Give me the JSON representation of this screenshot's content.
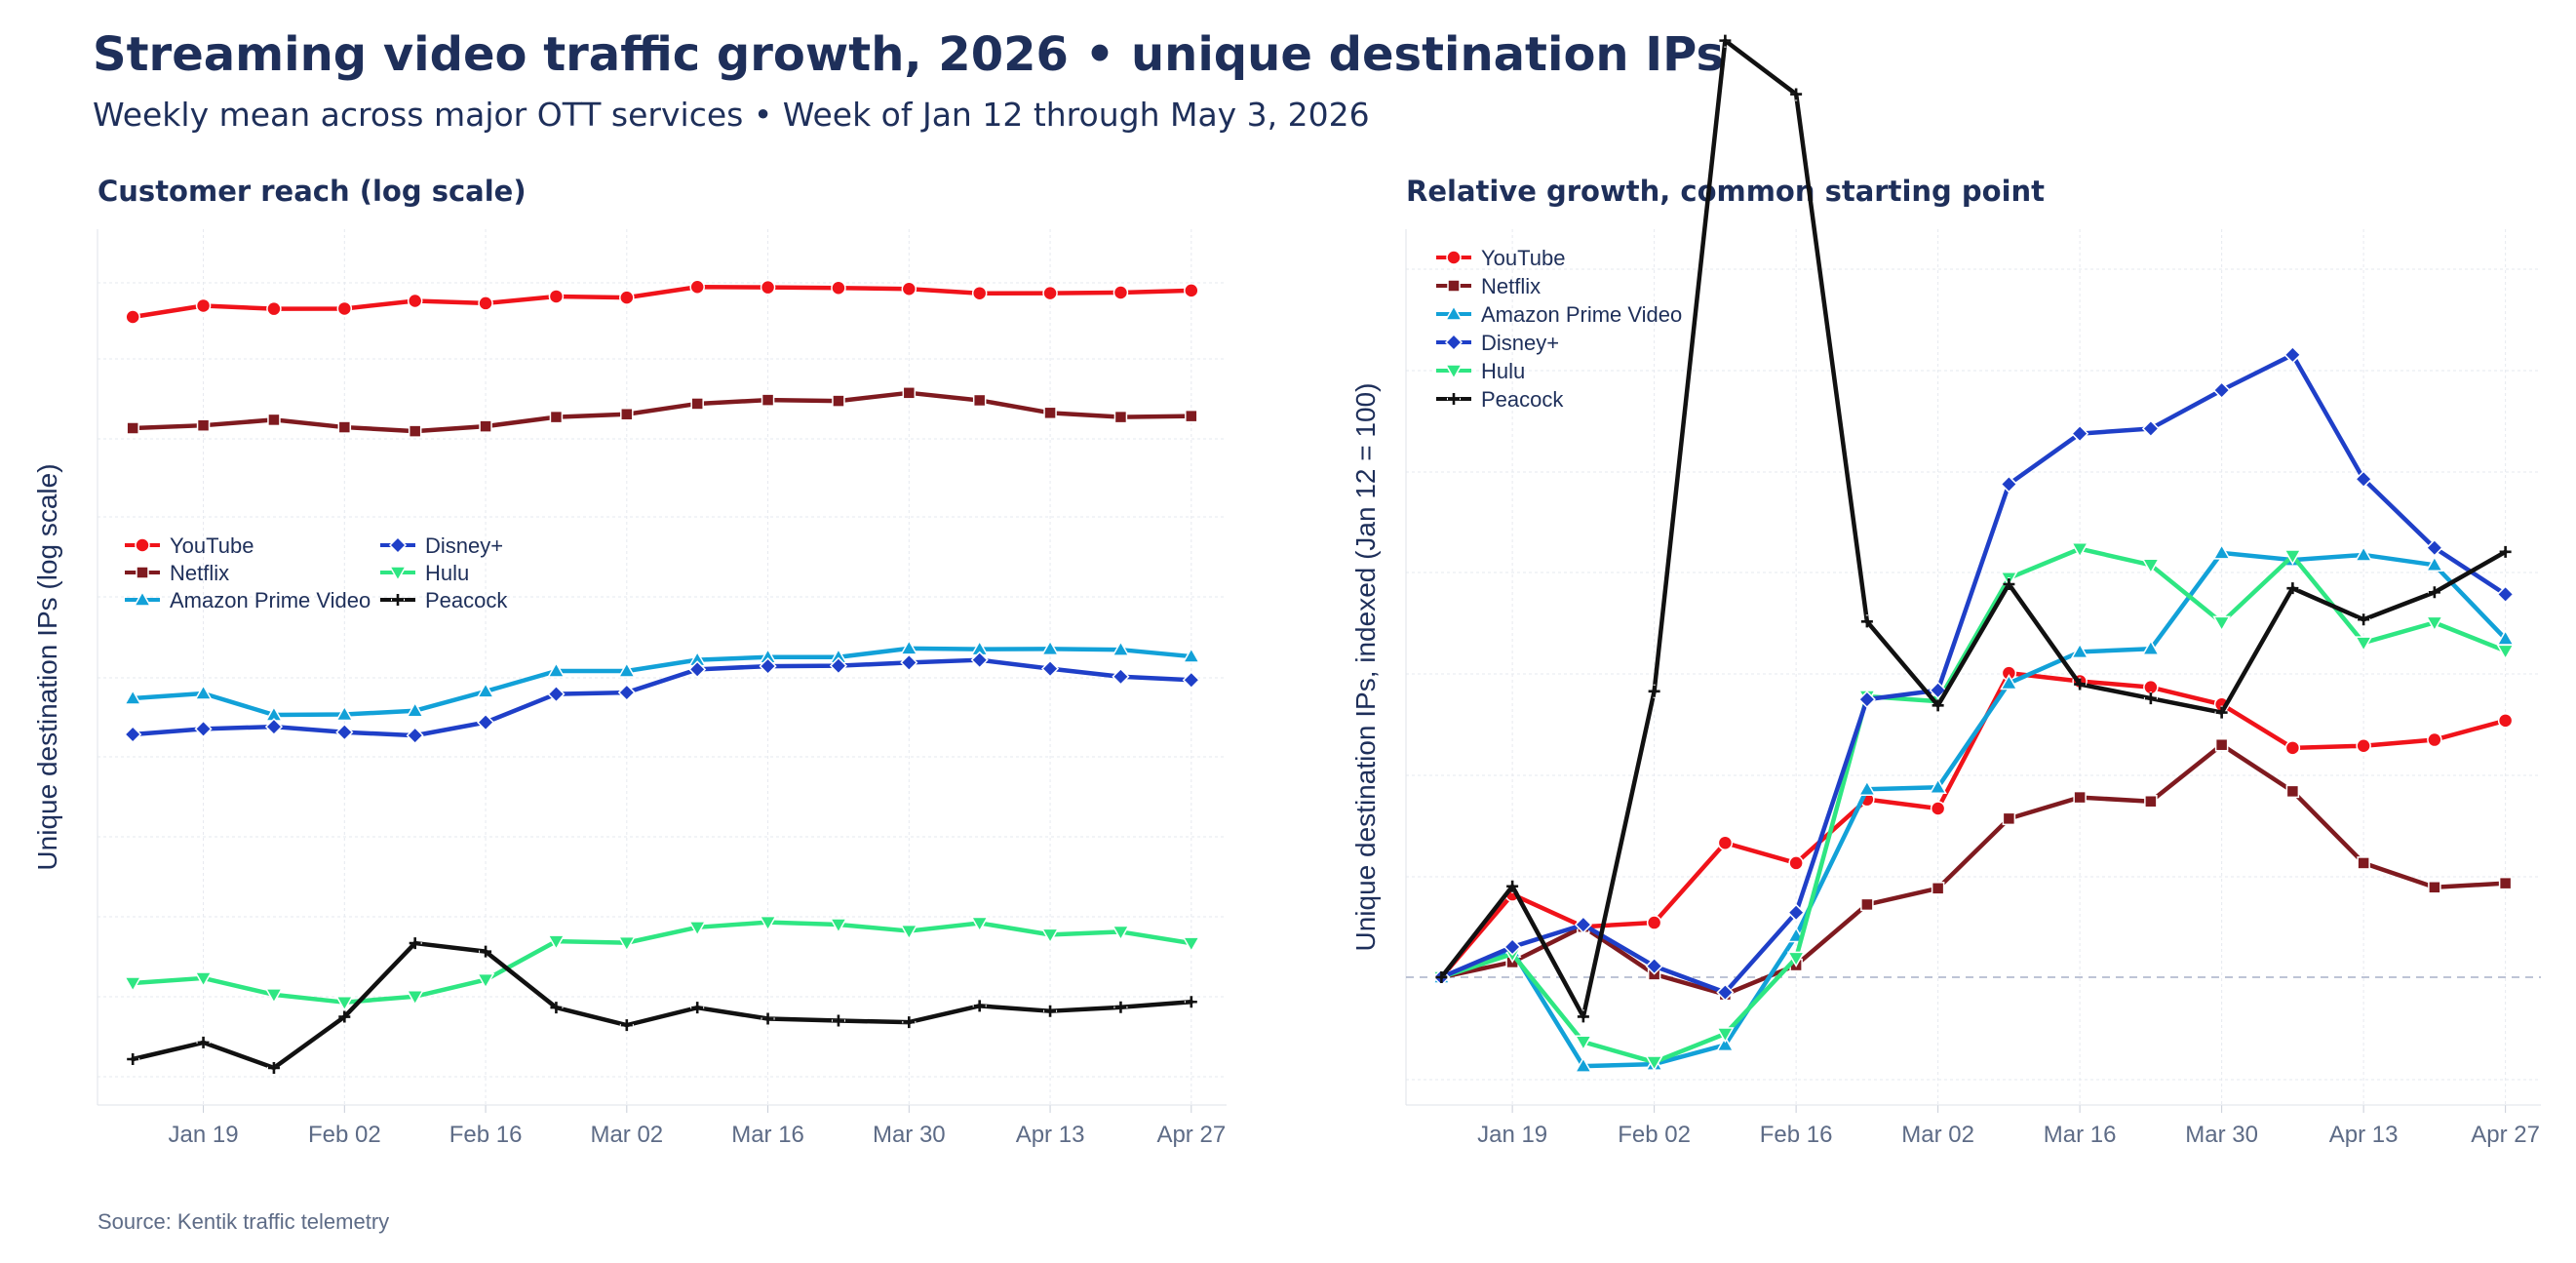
{
  "header": {
    "title": "Streaming video traffic growth, 2026 • unique destination IPs",
    "subtitle": "Weekly mean across major OTT services • Week of Jan 12 through May 3, 2026",
    "source": "Source: Kentik traffic telemetry"
  },
  "colors": {
    "YouTube": "#f0131a",
    "Netflix": "#7f1a1f",
    "Amazon Prime Video": "#12a1d8",
    "Disney+": "#1f3fc8",
    "Hulu": "#2ee682",
    "Peacock": "#111111"
  },
  "chart_data": [
    {
      "type": "line",
      "title": "Customer reach (log scale)",
      "xlabel": "",
      "ylabel": "Unique destination IPs  (log scale)",
      "yscale": "log",
      "grid": true,
      "legend": "middle-left, two columns",
      "x_tick_labels": [
        "Jan 19",
        "Feb 02",
        "Feb 16",
        "Mar 02",
        "Mar 16",
        "Mar 30",
        "Apr 13",
        "Apr 27"
      ],
      "x": [
        "2026-01-12",
        "2026-01-19",
        "2026-01-26",
        "2026-02-02",
        "2026-02-09",
        "2026-02-16",
        "2026-02-23",
        "2026-03-02",
        "2026-03-09",
        "2026-03-16",
        "2026-03-23",
        "2026-03-30",
        "2026-04-06",
        "2026-04-13",
        "2026-04-20",
        "2026-04-27"
      ],
      "series": [
        {
          "name": "YouTube",
          "marker": "circle",
          "values": [
            0.0,
            0.0344,
            0.0249,
            0.0255,
            0.0493,
            0.042,
            0.0628,
            0.0593,
            0.0918,
            0.0905,
            0.0888,
            0.0858,
            0.0725,
            0.0728,
            0.0746,
            0.081
          ]
        },
        {
          "name": "Netflix",
          "marker": "square",
          "values": [
            0.0,
            0.0084,
            0.0256,
            0.0028,
            -0.0093,
            0.0056,
            0.034,
            0.0426,
            0.0748,
            0.0862,
            0.0833,
            0.108,
            0.0852,
            0.0468,
            0.034,
            0.0369
          ]
        },
        {
          "name": "Amazon Prime Video",
          "marker": "triangle-up",
          "values": [
            0.0,
            0.015,
            -0.0507,
            -0.0493,
            -0.038,
            0.0212,
            0.0835,
            0.0835,
            0.1175,
            0.126,
            0.126,
            0.1527,
            0.1503,
            0.1511,
            0.1487,
            0.1282
          ]
        },
        {
          "name": "Disney+",
          "marker": "diamond",
          "values": [
            0.0,
            0.0168,
            0.0235,
            0.0067,
            -0.0034,
            0.0369,
            0.1236,
            0.1282,
            0.199,
            0.2087,
            0.2099,
            0.2198,
            0.2278,
            0.2012,
            0.1767,
            0.1665
          ]
        },
        {
          "name": "Hulu",
          "marker": "triangle-down",
          "values": [
            0.0,
            0.0151,
            -0.0354,
            -0.0588,
            -0.041,
            0.0101,
            0.128,
            0.1235,
            0.1707,
            0.1861,
            0.1791,
            0.1595,
            0.1837,
            0.1482,
            0.1569,
            0.122
          ]
        },
        {
          "name": "Peacock",
          "marker": "plus",
          "values": [
            0.0,
            0.051,
            -0.0267,
            0.1297,
            0.355,
            0.3294,
            0.158,
            0.1041,
            0.1577,
            0.1238,
            0.1178,
            0.1131,
            0.1631,
            0.1472,
            0.1588,
            0.1754
          ]
        }
      ]
    },
    {
      "type": "line",
      "title": "Relative growth, common starting point",
      "xlabel": "",
      "ylabel": "Unique destination IPs, indexed (Jan 12 = 100)",
      "baseline": 100,
      "grid": true,
      "legend": "top-left",
      "x_tick_labels": [
        "Jan 19",
        "Feb 02",
        "Feb 16",
        "Mar 02",
        "Mar 16",
        "Mar 30",
        "Apr 13",
        "Apr 27"
      ],
      "x": [
        "2026-01-12",
        "2026-01-19",
        "2026-01-26",
        "2026-02-02",
        "2026-02-09",
        "2026-02-16",
        "2026-02-23",
        "2026-03-02",
        "2026-03-09",
        "2026-03-16",
        "2026-03-23",
        "2026-03-30",
        "2026-04-06",
        "2026-04-13",
        "2026-04-20",
        "2026-04-27"
      ],
      "series": [
        {
          "name": "YouTube",
          "marker": "circle",
          "values": [
            100,
            108.2,
            105.0,
            105.4,
            113.3,
            111.3,
            117.6,
            116.7,
            130.1,
            129.3,
            128.7,
            127.0,
            122.7,
            122.9,
            123.5,
            125.4
          ]
        },
        {
          "name": "Netflix",
          "marker": "square",
          "values": [
            100,
            101.5,
            105.0,
            100.3,
            98.3,
            101.2,
            107.2,
            108.8,
            115.7,
            117.8,
            117.4,
            123.0,
            118.4,
            111.3,
            108.9,
            109.3
          ]
        },
        {
          "name": "Amazon Prime Video",
          "marker": "triangle-up",
          "values": [
            100,
            102.6,
            91.2,
            91.4,
            93.3,
            104.1,
            118.6,
            118.8,
            129.1,
            132.2,
            132.5,
            142.0,
            141.3,
            141.8,
            140.8,
            133.5
          ]
        },
        {
          "name": "Disney+",
          "marker": "diamond",
          "values": [
            100,
            103.0,
            105.2,
            101.1,
            98.5,
            106.4,
            127.5,
            128.4,
            148.8,
            153.8,
            154.3,
            158.1,
            161.6,
            149.3,
            142.5,
            137.9
          ]
        },
        {
          "name": "Hulu",
          "marker": "triangle-down",
          "values": [
            100,
            102.3,
            93.6,
            91.6,
            94.4,
            101.9,
            127.8,
            127.3,
            139.5,
            142.4,
            140.8,
            135.1,
            141.7,
            133.1,
            135.1,
            132.3
          ]
        },
        {
          "name": "Peacock",
          "marker": "plus",
          "values": [
            100,
            109.0,
            96.1,
            128.3,
            192.7,
            187.4,
            135.2,
            126.9,
            138.9,
            129.0,
            127.6,
            126.2,
            138.5,
            135.4,
            138.1,
            142.1
          ]
        }
      ]
    }
  ]
}
